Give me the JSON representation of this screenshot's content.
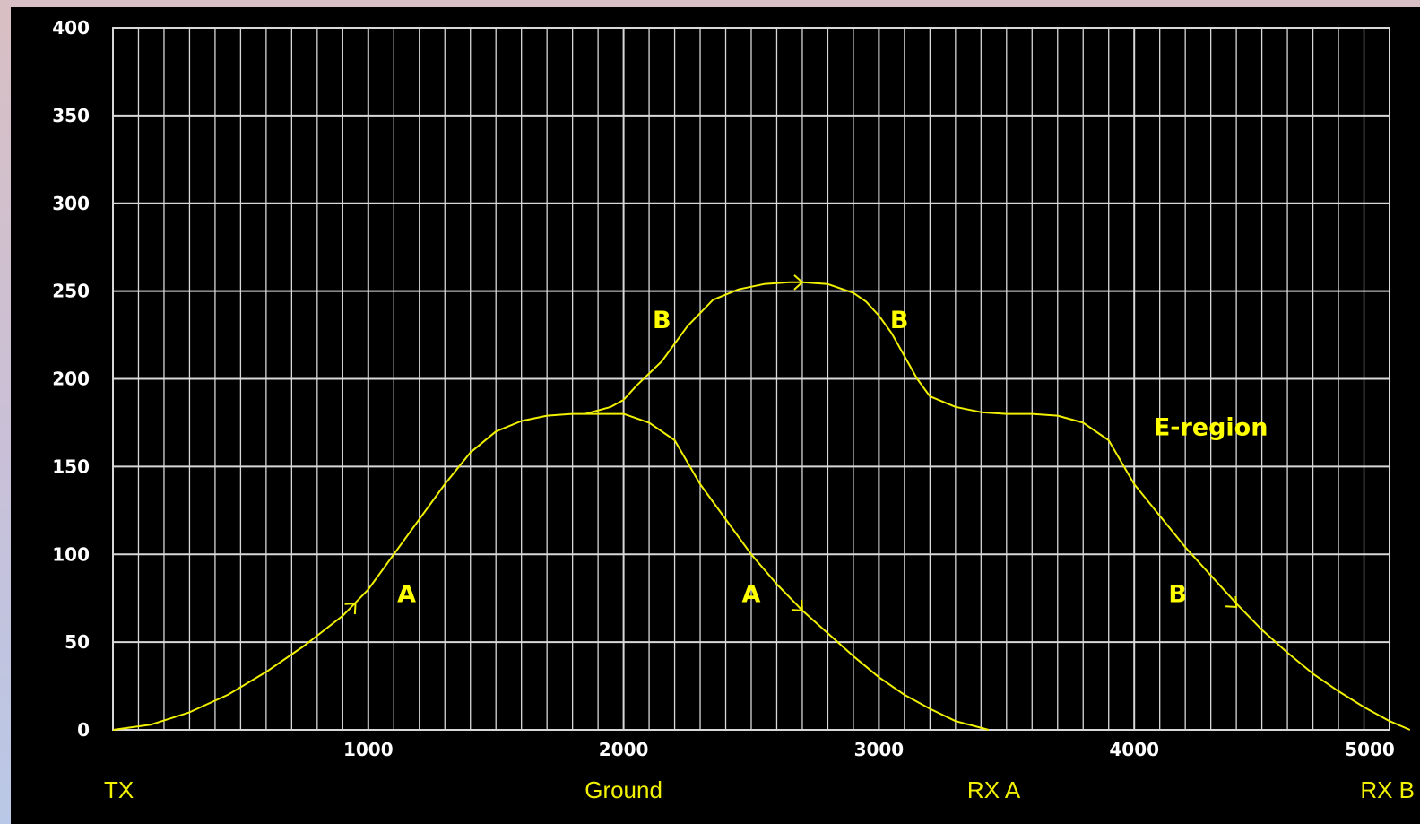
{
  "chart_data": {
    "type": "line",
    "title": "",
    "xlabel": "",
    "ylabel": "",
    "xlim": [
      0,
      5000
    ],
    "ylim": [
      0,
      400
    ],
    "x_ticks": [
      1000,
      2000,
      3000,
      4000,
      5000
    ],
    "y_ticks": [
      0,
      50,
      100,
      150,
      200,
      250,
      300,
      350,
      400
    ],
    "grid": true,
    "colors": {
      "background": "#000000",
      "grid": "#d8d8d8",
      "curve": "#f0f000",
      "annotation": "#ffff00",
      "tick_text": "#ffffff"
    },
    "series": [
      {
        "x": [
          0,
          150,
          300,
          450,
          600,
          750,
          900,
          1000,
          1150,
          1300,
          1400,
          1500,
          1600,
          1700,
          1800,
          1900,
          2000,
          2100,
          2200,
          2300,
          2400,
          2500,
          2600,
          2700,
          2800,
          2900,
          3000,
          3100,
          3200,
          3300,
          3430
        ],
        "y": [
          0,
          3,
          10,
          20,
          33,
          48,
          65,
          80,
          110,
          140,
          158,
          170,
          176,
          179,
          180,
          180,
          180,
          175,
          165,
          140,
          120,
          100,
          83,
          68,
          55,
          42,
          30,
          20,
          12,
          5,
          0
        ]
      },
      {
        "x": [
          1850,
          1950,
          2000,
          2050,
          2150,
          2200,
          2250,
          2350,
          2450,
          2550,
          2650,
          2700,
          2800,
          2900,
          2950,
          3000,
          3050,
          3100,
          3150,
          3200,
          3300,
          3400,
          3500,
          3600,
          3700,
          3800,
          3900,
          4000,
          4100,
          4200,
          4300,
          4400,
          4500,
          4600,
          4700,
          4800,
          4900,
          5000,
          5080
        ],
        "y": [
          180,
          184,
          188,
          196,
          210,
          220,
          230,
          245,
          251,
          254,
          255,
          255,
          254,
          249,
          244,
          236,
          226,
          213,
          200,
          190,
          184,
          181,
          180,
          180,
          179,
          175,
          165,
          140,
          122,
          104,
          88,
          72,
          57,
          44,
          32,
          22,
          13,
          5,
          0
        ]
      }
    ],
    "direction_arrows": [
      {
        "x": 950,
        "y": 72,
        "direction": "up-right"
      },
      {
        "x": 2700,
        "y": 255,
        "direction": "right"
      },
      {
        "x": 2700,
        "y": 68,
        "direction": "down-right"
      },
      {
        "x": 4400,
        "y": 70,
        "direction": "down-right"
      }
    ],
    "annotations": [
      {
        "text": "A",
        "x": 1150,
        "y": 78
      },
      {
        "text": "A",
        "x": 2500,
        "y": 78
      },
      {
        "text": "B",
        "x": 2150,
        "y": 234
      },
      {
        "text": "B",
        "x": 3080,
        "y": 234
      },
      {
        "text": "B",
        "x": 4170,
        "y": 78
      },
      {
        "text": "E-region",
        "x": 4300,
        "y": 173
      }
    ],
    "ground_labels": [
      {
        "text": "TX",
        "x": 0
      },
      {
        "text": "Ground",
        "x": 2000
      },
      {
        "text": "RX A",
        "x": 3450
      },
      {
        "text": "RX B",
        "x": 4900
      }
    ]
  }
}
